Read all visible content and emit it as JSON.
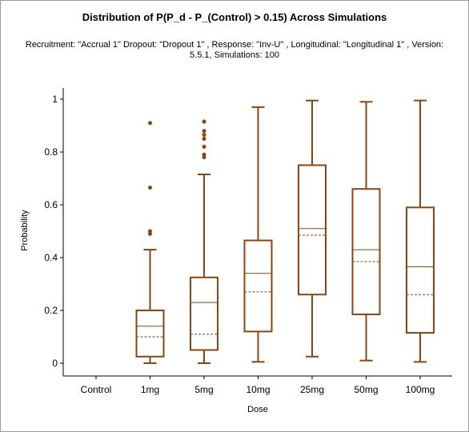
{
  "chart_data": {
    "type": "box",
    "title": "Distribution of P(P_d - P_(Control) > 0.15) Across Simulations",
    "subtitle": "Recruitment: \"Accrual 1\" Dropout: \"Dropout 1\" , Response: \"Inv-U\" , Longitudinal: \"Longitudinal 1\" , Version: 5.5.1, Simulations: 100",
    "xlabel": "Dose",
    "ylabel": "Probability",
    "ylim": [
      0,
      1
    ],
    "yticks": [
      0,
      0.2,
      0.4,
      0.6,
      0.8,
      1
    ],
    "ytick_labels": [
      "0",
      "0.2",
      "0.4",
      "0.6",
      "0.8",
      "1"
    ],
    "categories": [
      "Control",
      "1mg",
      "5mg",
      "10mg",
      "25mg",
      "50mg",
      "100mg"
    ],
    "color": "#8b4513",
    "grid": false,
    "boxes": [
      null,
      {
        "min": 0.0,
        "q1": 0.025,
        "median": 0.14,
        "mean": 0.1,
        "q3": 0.2,
        "max": 0.43,
        "outliers": [
          0.49,
          0.5,
          0.665,
          0.91
        ]
      },
      {
        "min": 0.0,
        "q1": 0.05,
        "median": 0.23,
        "mean": 0.11,
        "q3": 0.325,
        "max": 0.715,
        "outliers": [
          0.78,
          0.79,
          0.82,
          0.85,
          0.865,
          0.88,
          0.915
        ]
      },
      {
        "min": 0.005,
        "q1": 0.12,
        "median": 0.34,
        "mean": 0.27,
        "q3": 0.465,
        "max": 0.97,
        "outliers": []
      },
      {
        "min": 0.025,
        "q1": 0.26,
        "median": 0.51,
        "mean": 0.485,
        "q3": 0.75,
        "max": 0.995,
        "outliers": []
      },
      {
        "min": 0.01,
        "q1": 0.185,
        "median": 0.43,
        "mean": 0.385,
        "q3": 0.66,
        "max": 0.99,
        "outliers": []
      },
      {
        "min": 0.005,
        "q1": 0.115,
        "median": 0.365,
        "mean": 0.26,
        "q3": 0.59,
        "max": 0.995,
        "outliers": []
      }
    ]
  }
}
